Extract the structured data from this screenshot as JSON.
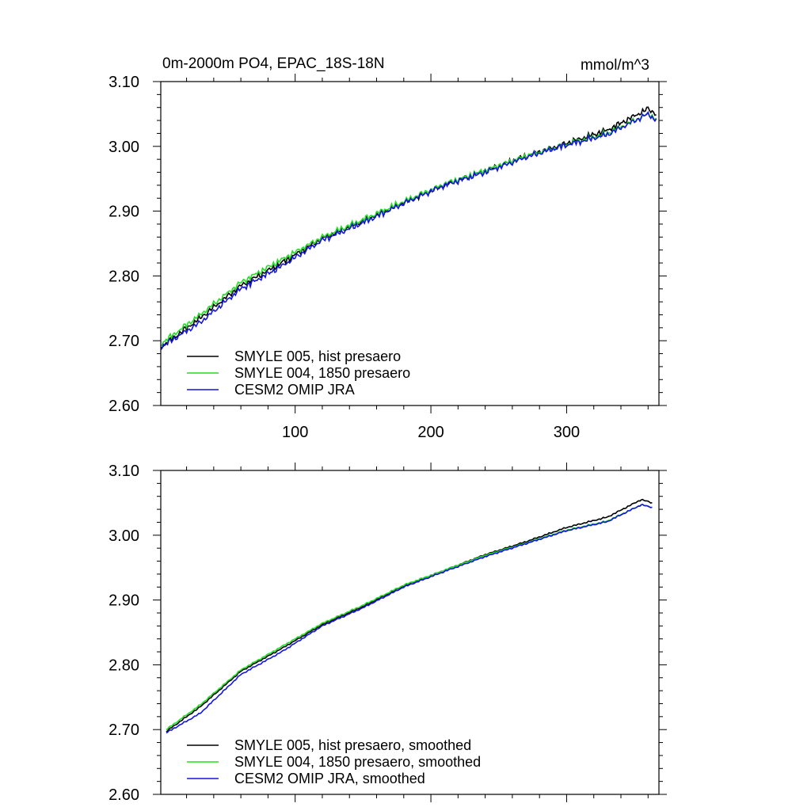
{
  "chart_data": [
    {
      "type": "line",
      "title": "0m-2000m PO4, EPAC_18S-18N",
      "units": "mmol/m^3",
      "xlim": [
        1,
        368
      ],
      "ylim": [
        2.6,
        3.1
      ],
      "x_ticks": [
        100,
        200,
        300
      ],
      "x_tick_labels": [
        "100",
        "200",
        "300"
      ],
      "y_ticks": [
        2.6,
        2.7,
        2.8,
        2.9,
        3.0,
        3.1
      ],
      "y_tick_labels": [
        "2.60",
        "2.70",
        "2.80",
        "2.90",
        "3.00",
        "3.10"
      ],
      "legend_position": "bottom-left",
      "smoothed": false,
      "series": [
        {
          "name": "SMYLE 005, hist presaero",
          "color": "#000000",
          "x": [
            1,
            30,
            60,
            90,
            120,
            150,
            180,
            210,
            240,
            270,
            300,
            330,
            360,
            366
          ],
          "values": [
            2.69,
            2.735,
            2.785,
            2.82,
            2.858,
            2.885,
            2.913,
            2.94,
            2.962,
            2.985,
            3.005,
            3.025,
            3.058,
            3.05
          ]
        },
        {
          "name": "SMYLE 004, 1850 presaero",
          "color": "#22dd22",
          "x": [
            1,
            30,
            60,
            90,
            120,
            150,
            180,
            210,
            240,
            270,
            300,
            330,
            360,
            366
          ],
          "values": [
            2.695,
            2.74,
            2.79,
            2.825,
            2.86,
            2.887,
            2.915,
            2.942,
            2.963,
            2.985,
            3.003,
            3.02,
            3.05,
            3.043
          ]
        },
        {
          "name": "CESM2 OMIP JRA",
          "color": "#1414dd",
          "x": [
            1,
            30,
            60,
            90,
            120,
            150,
            180,
            210,
            240,
            270,
            300,
            330,
            360,
            366
          ],
          "values": [
            2.69,
            2.728,
            2.78,
            2.815,
            2.855,
            2.882,
            2.912,
            2.94,
            2.96,
            2.983,
            3.002,
            3.018,
            3.05,
            3.04
          ]
        }
      ]
    },
    {
      "type": "line",
      "title": "",
      "xlim": [
        1,
        368
      ],
      "ylim": [
        2.6,
        3.1
      ],
      "x_ticks": [
        100,
        200,
        300
      ],
      "y_ticks": [
        2.6,
        2.7,
        2.8,
        2.9,
        3.0,
        3.1
      ],
      "y_tick_labels": [
        "2.60",
        "2.70",
        "2.80",
        "2.90",
        "3.00",
        "3.10"
      ],
      "legend_position": "bottom-left",
      "smoothed": true,
      "series": [
        {
          "name": "SMYLE 005, hist presaero, smoothed",
          "color": "#000000",
          "x": [
            5,
            30,
            60,
            90,
            120,
            150,
            180,
            210,
            240,
            270,
            300,
            330,
            355,
            363
          ],
          "values": [
            2.697,
            2.735,
            2.79,
            2.825,
            2.862,
            2.89,
            2.922,
            2.946,
            2.97,
            2.99,
            3.012,
            3.028,
            3.055,
            3.05
          ]
        },
        {
          "name": "SMYLE 004, 1850 presaero, smoothed",
          "color": "#22dd22",
          "x": [
            5,
            30,
            60,
            90,
            120,
            150,
            180,
            210,
            240,
            270,
            300,
            330,
            355,
            363
          ],
          "values": [
            2.7,
            2.738,
            2.792,
            2.828,
            2.864,
            2.892,
            2.923,
            2.946,
            2.969,
            2.988,
            3.008,
            3.022,
            3.047,
            3.043
          ]
        },
        {
          "name": "CESM2 OMIP JRA, smoothed",
          "color": "#1414dd",
          "x": [
            5,
            30,
            60,
            90,
            120,
            150,
            180,
            210,
            240,
            270,
            300,
            330,
            355,
            363
          ],
          "values": [
            2.695,
            2.725,
            2.785,
            2.82,
            2.86,
            2.888,
            2.92,
            2.944,
            2.967,
            2.987,
            3.007,
            3.021,
            3.047,
            3.043
          ]
        }
      ]
    }
  ]
}
